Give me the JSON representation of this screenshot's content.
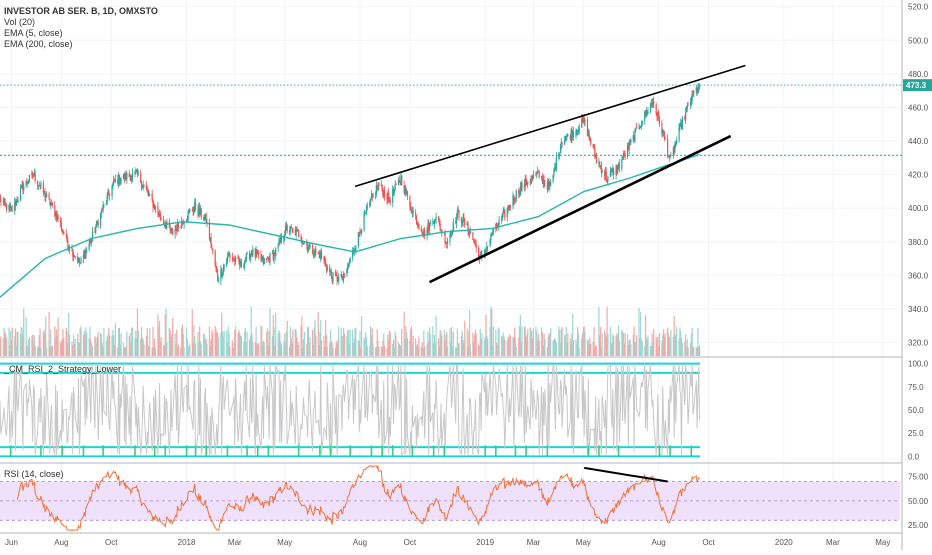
{
  "header": {
    "title": "INVESTOR AB SER. B, 1D, OMXSTO",
    "indicators": [
      "Vol (20)",
      "EMA (5, close)",
      "EMA (200, close)"
    ]
  },
  "panels": {
    "rsi2_title": "_CM_RSI_2_Strategy_Lower",
    "rsi14_title": "RSI (14, close)"
  },
  "colors": {
    "up": "#26a69a",
    "down": "#ef5350",
    "ema200": "#26b5a8",
    "trendline": "#000000",
    "dotted_level": "#1fb8b0",
    "last_price_badge": "#26a69a",
    "rsi14_line": "#f0733a",
    "rsi14_band": "#efe0fb",
    "rsi2_line": "#c8c8c8",
    "rsi2_bands": "#19d7d0"
  },
  "chart_data": [
    {
      "type": "line",
      "subtype": "candlestick",
      "symbol": "INVESTOR AB SER. B",
      "interval": "1D",
      "exchange": "OMXSTO",
      "time_axis": [
        "Jun",
        "Aug",
        "Oct",
        "2018",
        "Mar",
        "May",
        "Aug",
        "Oct",
        "2019",
        "Mar",
        "May",
        "Aug",
        "Oct",
        "2020",
        "Mar",
        "May"
      ],
      "x_range": [
        "2017-05-18",
        "2020-05-22"
      ],
      "y_ticks": [
        320.0,
        340.0,
        360.0,
        380.0,
        400.0,
        420.0,
        440.0,
        460.0,
        480.0,
        500.0,
        520.0
      ],
      "ylim": [
        312,
        524
      ],
      "last_price": "473.3",
      "last_price_value": 473.3,
      "horizontal_level": 431.5,
      "close_path": [
        [
          "2017-05-18",
          405
        ],
        [
          "2017-06-01",
          398
        ],
        [
          "2017-06-15",
          413
        ],
        [
          "2017-06-28",
          420
        ],
        [
          "2017-07-12",
          408
        ],
        [
          "2017-07-26",
          396
        ],
        [
          "2017-08-10",
          378
        ],
        [
          "2017-08-24",
          367
        ],
        [
          "2017-09-07",
          382
        ],
        [
          "2017-09-20",
          399
        ],
        [
          "2017-10-05",
          416
        ],
        [
          "2017-10-19",
          419
        ],
        [
          "2017-11-02",
          420
        ],
        [
          "2017-11-16",
          407
        ],
        [
          "2017-11-30",
          395
        ],
        [
          "2017-12-14",
          385
        ],
        [
          "2017-12-28",
          393
        ],
        [
          "2018-01-11",
          401
        ],
        [
          "2018-01-25",
          393
        ],
        [
          "2018-02-08",
          358
        ],
        [
          "2018-02-22",
          372
        ],
        [
          "2018-03-08",
          366
        ],
        [
          "2018-03-22",
          374
        ],
        [
          "2018-04-05",
          368
        ],
        [
          "2018-04-19",
          373
        ],
        [
          "2018-05-03",
          388
        ],
        [
          "2018-05-17",
          385
        ],
        [
          "2018-05-31",
          376
        ],
        [
          "2018-06-14",
          372
        ],
        [
          "2018-06-28",
          359
        ],
        [
          "2018-07-12",
          358
        ],
        [
          "2018-07-26",
          378
        ],
        [
          "2018-08-09",
          398
        ],
        [
          "2018-08-23",
          414
        ],
        [
          "2018-09-06",
          405
        ],
        [
          "2018-09-20",
          418
        ],
        [
          "2018-10-04",
          398
        ],
        [
          "2018-10-18",
          385
        ],
        [
          "2018-11-01",
          395
        ],
        [
          "2018-11-15",
          380
        ],
        [
          "2018-11-29",
          397
        ],
        [
          "2018-12-13",
          386
        ],
        [
          "2018-12-27",
          369
        ],
        [
          "2019-01-10",
          385
        ],
        [
          "2019-01-24",
          396
        ],
        [
          "2019-02-07",
          408
        ],
        [
          "2019-02-21",
          416
        ],
        [
          "2019-03-07",
          420
        ],
        [
          "2019-03-21",
          412
        ],
        [
          "2019-04-04",
          440
        ],
        [
          "2019-04-18",
          445
        ],
        [
          "2019-05-02",
          452
        ],
        [
          "2019-05-16",
          430
        ],
        [
          "2019-05-30",
          418
        ],
        [
          "2019-06-13",
          425
        ],
        [
          "2019-06-27",
          438
        ],
        [
          "2019-07-11",
          452
        ],
        [
          "2019-07-25",
          464
        ],
        [
          "2019-08-08",
          442
        ],
        [
          "2019-08-15",
          428
        ],
        [
          "2019-08-29",
          450
        ],
        [
          "2019-09-12",
          468
        ],
        [
          "2019-09-20",
          473.3
        ]
      ],
      "ema200": [
        [
          "2017-05-18",
          347
        ],
        [
          "2017-07-12",
          370
        ],
        [
          "2017-09-07",
          382
        ],
        [
          "2017-11-02",
          388
        ],
        [
          "2017-12-28",
          392
        ],
        [
          "2018-02-22",
          390
        ],
        [
          "2018-04-19",
          384
        ],
        [
          "2018-06-14",
          378
        ],
        [
          "2018-07-26",
          374
        ],
        [
          "2018-09-20",
          382
        ],
        [
          "2018-11-15",
          386
        ],
        [
          "2019-01-10",
          388
        ],
        [
          "2019-03-07",
          395
        ],
        [
          "2019-05-02",
          410
        ],
        [
          "2019-06-27",
          418
        ],
        [
          "2019-08-08",
          425
        ],
        [
          "2019-09-20",
          432
        ]
      ],
      "upper_trendline": [
        [
          "2018-07-26",
          413
        ],
        [
          "2019-11-15",
          485
        ]
      ],
      "lower_trendline": [
        [
          "2018-10-25",
          356
        ],
        [
          "2019-10-28",
          443
        ]
      ]
    },
    {
      "type": "bar",
      "name": "Vol (20)",
      "note_units": "relative"
    },
    {
      "type": "line",
      "name": "_CM_RSI_2_Strategy_Lower",
      "y_ticks": [
        0.0,
        25.0,
        50.0,
        75.0,
        100.0
      ],
      "ylim": [
        -6,
        106
      ],
      "band_levels": [
        0,
        10,
        90,
        100
      ]
    },
    {
      "type": "line",
      "name": "RSI (14, close)",
      "y_ticks": [
        25.0,
        50.0,
        75.0
      ],
      "ylim": [
        18,
        88
      ],
      "band": [
        30,
        70
      ],
      "divergence_line": [
        [
          "2019-05-02",
          84
        ],
        [
          "2019-08-12",
          70
        ]
      ]
    }
  ]
}
